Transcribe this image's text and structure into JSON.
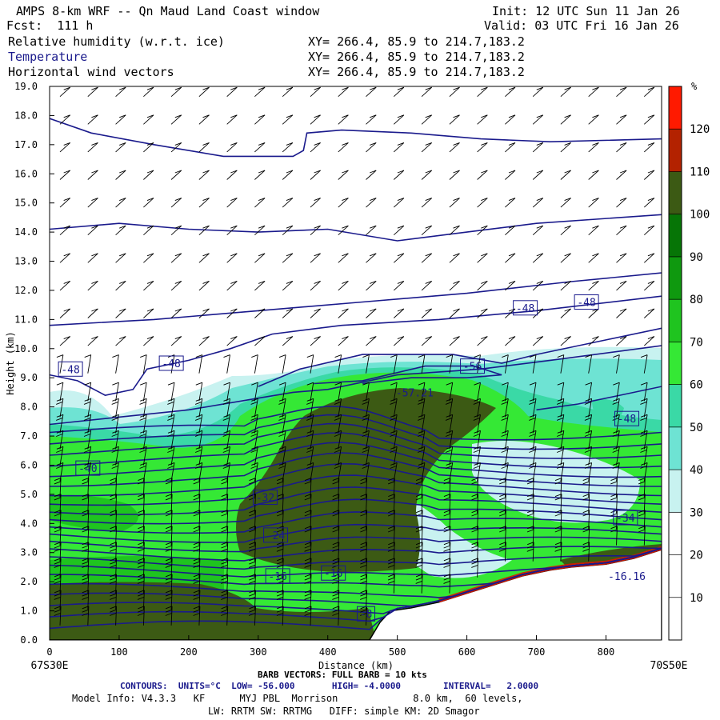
{
  "header": {
    "title": "AMPS 8-km WRF -- Qn Maud Land Coast window",
    "init": "Init: 12 UTC Sun 11 Jan 26",
    "fcst": "Fcst:  111 h",
    "valid": "Valid: 03 UTC Fri 16 Jan 26",
    "fields": [
      {
        "name": "Relative humidity (w.r.t. ice)",
        "xy": "XY= 266.4, 85.9 to 214.7,183.2"
      },
      {
        "name": "Temperature",
        "xy": "XY= 266.4, 85.9 to 214.7,183.2"
      },
      {
        "name": "Horizontal wind vectors",
        "xy": "XY= 266.4, 85.9 to 214.7,183.2"
      }
    ]
  },
  "chart_data": {
    "type": "heatmap",
    "xlabel": "Distance (km)",
    "ylabel": "Height (km)",
    "xlim": [
      0,
      880
    ],
    "ylim": [
      0,
      19
    ],
    "x_ticks": [
      0,
      100,
      200,
      300,
      400,
      500,
      600,
      700,
      800
    ],
    "y_ticks": [
      "0.0",
      "1.0",
      "2.0",
      "3.0",
      "4.0",
      "5.0",
      "6.0",
      "7.0",
      "8.0",
      "9.0",
      "10.0",
      "11.0",
      "12.0",
      "13.0",
      "14.0",
      "15.0",
      "16.0",
      "17.0",
      "18.0",
      "19.0"
    ],
    "x_endpoints": {
      "left": "67S30E",
      "right": "70S50E"
    },
    "colorbar": {
      "unit": "%",
      "levels": [
        10,
        20,
        30,
        40,
        50,
        60,
        70,
        80,
        90,
        100,
        110,
        120
      ],
      "colors": [
        "#ffffff",
        "#ffffff",
        "#ffffff",
        "#c8f2f0",
        "#6ee3d3",
        "#3ad9a6",
        "#35e835",
        "#1fc41f",
        "#0f990f",
        "#067506",
        "#3c5a14",
        "#b32200",
        "#ff1a00"
      ]
    },
    "terrain": [
      [
        0,
        0
      ],
      [
        460,
        0
      ],
      [
        475,
        0.6
      ],
      [
        490,
        1.0
      ],
      [
        520,
        1.1
      ],
      [
        560,
        1.3
      ],
      [
        600,
        1.6
      ],
      [
        640,
        1.9
      ],
      [
        680,
        2.2
      ],
      [
        720,
        2.4
      ],
      [
        750,
        2.5
      ],
      [
        800,
        2.6
      ],
      [
        840,
        2.8
      ],
      [
        880,
        3.1
      ]
    ],
    "contour_labels": [
      {
        "text": "-48",
        "x": 30,
        "y": 9.3
      },
      {
        "text": "-48",
        "x": 175,
        "y": 9.5
      },
      {
        "text": "-56",
        "x": 608,
        "y": 9.4
      },
      {
        "text": "-57.21",
        "x": 525,
        "y": 8.5
      },
      {
        "text": "-48",
        "x": 684,
        "y": 11.4
      },
      {
        "text": "-48",
        "x": 772,
        "y": 11.6
      },
      {
        "text": "-48",
        "x": 830,
        "y": 7.6
      },
      {
        "text": "-40",
        "x": 55,
        "y": 5.9
      },
      {
        "text": "-32",
        "x": 310,
        "y": 4.9
      },
      {
        "text": "-34",
        "x": 828,
        "y": 4.2
      },
      {
        "text": "-24",
        "x": 325,
        "y": 3.6
      },
      {
        "text": "-16",
        "x": 328,
        "y": 2.2
      },
      {
        "text": "-16",
        "x": 408,
        "y": 2.3
      },
      {
        "text": "-16.16",
        "x": 830,
        "y": 2.2
      },
      {
        "text": "-8",
        "x": 455,
        "y": 0.9
      }
    ]
  },
  "footer": {
    "barb_note": "BARB VECTORS: FULL BARB = 10 kts",
    "contours": "CONTOURS:  UNITS=°C  LOW= -56.000       HIGH= -4.0000        INTERVAL=   2.0000",
    "model_info": "Model Info: V4.3.3   KF      MYJ PBL  Morrison             8.0 km,  60 levels,",
    "physics": "LW: RRTM SW: RRTMG   DIFF: simple KM: 2D Smagor"
  }
}
